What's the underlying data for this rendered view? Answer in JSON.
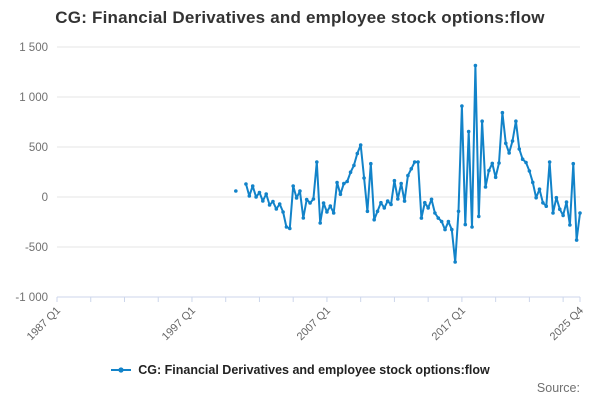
{
  "title": "CG: Financial Derivatives and employee stock options:flow",
  "legend": {
    "label": "CG: Financial Derivatives and employee stock options:flow"
  },
  "source_label": "Source:",
  "colors": {
    "series": "#1283c9",
    "grid": "#e6e6e6",
    "axis": "#ccd6eb",
    "text_muted": "#707070",
    "title_text": "#333333"
  },
  "chart_data": {
    "type": "line",
    "title": "CG: Financial Derivatives and employee stock options:flow",
    "series_name": "CG: Financial Derivatives and employee stock options:flow",
    "legend_position": "bottom-center",
    "grid": "horizontal-only",
    "y_axis": {
      "range": [
        -1000,
        1500
      ],
      "ticks": [
        1500,
        1000,
        500,
        0,
        -500,
        -1000
      ],
      "tick_labels": [
        "1 500",
        "1 000",
        "500",
        "0",
        "-500",
        "-1 000"
      ]
    },
    "x_axis": {
      "start": "1987 Q1",
      "end": "2025 Q4",
      "total_quarters": 155,
      "tick_interval": 10,
      "labels": [
        {
          "pos": 0,
          "text": "1987 Q1"
        },
        {
          "pos": 40,
          "text": "1997 Q1"
        },
        {
          "pos": 80,
          "text": "2007 Q1"
        },
        {
          "pos": 120,
          "text": "2017 Q1"
        },
        {
          "pos": 155,
          "text": "2025 Q4"
        }
      ]
    },
    "data": {
      "start_quarter": "2000 Q2",
      "start_index": 53,
      "quarters": [
        "2000 Q2",
        "2000 Q3",
        "2000 Q4",
        "2001 Q1",
        "2001 Q2",
        "2001 Q3",
        "2001 Q4",
        "2002 Q1",
        "2002 Q2",
        "2002 Q3",
        "2002 Q4",
        "2003 Q1",
        "2003 Q2",
        "2003 Q3",
        "2003 Q4",
        "2004 Q1",
        "2004 Q2",
        "2004 Q3",
        "2004 Q4",
        "2005 Q1",
        "2005 Q2",
        "2005 Q3",
        "2005 Q4",
        "2006 Q1",
        "2006 Q2",
        "2006 Q3",
        "2006 Q4",
        "2007 Q1",
        "2007 Q2",
        "2007 Q3",
        "2007 Q4",
        "2008 Q1",
        "2008 Q2",
        "2008 Q3",
        "2008 Q4",
        "2009 Q1",
        "2009 Q2",
        "2009 Q3",
        "2009 Q4",
        "2010 Q1",
        "2010 Q2",
        "2010 Q3",
        "2010 Q4",
        "2011 Q1",
        "2011 Q2",
        "2011 Q3",
        "2011 Q4",
        "2012 Q1",
        "2012 Q2",
        "2012 Q3",
        "2012 Q4",
        "2013 Q1",
        "2013 Q2",
        "2013 Q3",
        "2013 Q4",
        "2014 Q1",
        "2014 Q2",
        "2014 Q3",
        "2014 Q4",
        "2015 Q1",
        "2015 Q2",
        "2015 Q3",
        "2015 Q4",
        "2016 Q1",
        "2016 Q2",
        "2016 Q3",
        "2016 Q4",
        "2017 Q1",
        "2017 Q2",
        "2017 Q3",
        "2017 Q4",
        "2018 Q1",
        "2018 Q2",
        "2018 Q3",
        "2018 Q4",
        "2019 Q1",
        "2019 Q2",
        "2019 Q3",
        "2019 Q4",
        "2020 Q1",
        "2020 Q2",
        "2020 Q3",
        "2020 Q4",
        "2021 Q1",
        "2021 Q2",
        "2021 Q3",
        "2021 Q4",
        "2022 Q1",
        "2022 Q2",
        "2022 Q3",
        "2022 Q4",
        "2023 Q1",
        "2023 Q2",
        "2023 Q3",
        "2023 Q4",
        "2024 Q1",
        "2024 Q2",
        "2024 Q3",
        "2024 Q4",
        "2025 Q1",
        "2025 Q2",
        "2025 Q3",
        "2025 Q4"
      ],
      "values": [
        60,
        null,
        null,
        130,
        10,
        110,
        0,
        45,
        -40,
        30,
        -80,
        -45,
        -120,
        -70,
        -150,
        -300,
        -315,
        110,
        -10,
        60,
        -210,
        -25,
        -60,
        -20,
        350,
        -260,
        -60,
        -150,
        -90,
        -160,
        145,
        27,
        134,
        155,
        248,
        316,
        435,
        520,
        190,
        -143,
        333,
        -227,
        -143,
        -57,
        -109,
        -41,
        -75,
        163,
        -20,
        135,
        -41,
        214,
        282,
        350,
        350,
        -211,
        -57,
        -109,
        -23,
        -160,
        -211,
        -245,
        -326,
        -245,
        -326,
        -650,
        -143,
        910,
        -276,
        655,
        -300,
        1315,
        -194,
        758,
        100,
        265,
        336,
        197,
        340,
        843,
        537,
        440,
        560,
        758,
        480,
        378,
        345,
        260,
        146,
        -7,
        78,
        -58,
        -92,
        350,
        -160,
        -7,
        -122,
        -184,
        -51,
        -280,
        333,
        -431,
        -160
      ]
    }
  }
}
